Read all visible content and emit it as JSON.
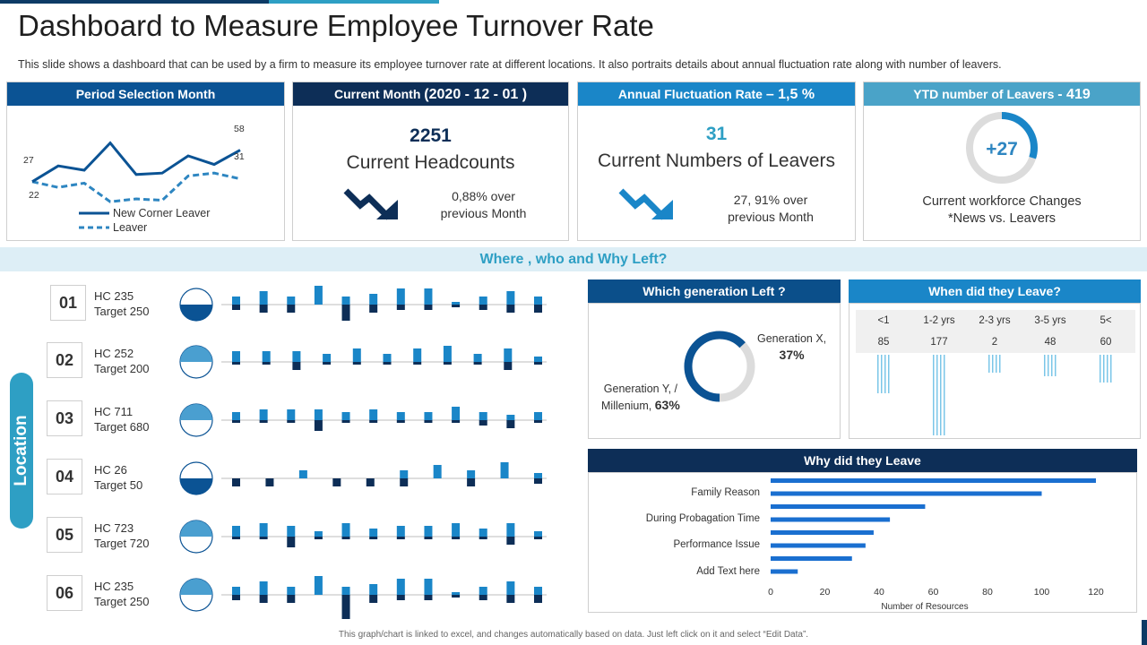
{
  "page": {
    "title": "Dashboard to Measure Employee Turnover Rate",
    "subtitle": "This slide shows a dashboard that can be used by a firm to measure its employee turnover rate at different locations. It also portraits details about annual fluctuation rate along with number of leavers.",
    "footer": "This graph/chart is linked to excel, and changes automatically based on data. Just left click on it and select “Edit Data”."
  },
  "colors": {
    "navy": "#0d3b66",
    "dark_blue": "#0b5394",
    "mid_blue": "#1f78b4",
    "accent": "#2e9fc4",
    "bright": "#1a8fd6",
    "light_band": "#ddeef6",
    "grey_ring": "#dcdcdc"
  },
  "cards": {
    "period": {
      "head": "Period Selection Month",
      "label_27": "27",
      "label_22": "22",
      "label_58": "58",
      "label_31": "31",
      "legend_solid": "New Corner  Leaver",
      "legend_dashed": "Leaver",
      "solid_series": [
        27,
        38,
        35,
        54,
        32,
        33,
        45,
        39,
        49
      ],
      "dashed_series": [
        27,
        23,
        26,
        13,
        15,
        14,
        31,
        33,
        29
      ]
    },
    "current_month": {
      "head_prefix": "Current Month ",
      "head_value": "(2020 - 12 - 01 )",
      "value": "2251",
      "caption": "Current Headcounts",
      "delta_line1": "0,88% over",
      "delta_line2": "previous Month",
      "icon": "trend-down-arrow-icon"
    },
    "fluctuation": {
      "head_prefix": "Annual Fluctuation Rate ",
      "head_value": "– 1,5 %",
      "value": "31",
      "caption": "Current Numbers of Leavers",
      "delta_line1": "27, 91% over",
      "delta_line2": "previous Month",
      "icon": "trend-down-arrow-icon"
    },
    "ytd": {
      "head_prefix": "YTD number of Leavers ",
      "head_value": "- 419",
      "ring_value": "+27",
      "ring_fraction": 0.3,
      "caption_line1": "Current workforce Changes",
      "caption_line2": "*News vs. Leavers"
    }
  },
  "section_title": "Where , who and Why Left?",
  "location_label": "Location",
  "locations": [
    {
      "id": "01",
      "hc": "HC 235",
      "target": "Target 250",
      "fill": 0.5,
      "bars": [
        [
          3,
          2
        ],
        [
          5,
          3
        ],
        [
          3,
          3
        ],
        [
          7,
          0
        ],
        [
          3,
          6
        ],
        [
          4,
          3
        ],
        [
          6,
          2
        ],
        [
          6,
          2
        ],
        [
          1,
          1
        ],
        [
          3,
          2
        ],
        [
          5,
          3
        ],
        [
          3,
          3
        ]
      ]
    },
    {
      "id": "02",
      "hc": "HC 252",
      "target": "Target 200",
      "fill": 0.5,
      "bars": [
        [
          4,
          1
        ],
        [
          4,
          1
        ],
        [
          4,
          3
        ],
        [
          3,
          1
        ],
        [
          5,
          1
        ],
        [
          3,
          1
        ],
        [
          5,
          1
        ],
        [
          6,
          1
        ],
        [
          3,
          1
        ],
        [
          5,
          3
        ],
        [
          2,
          1
        ]
      ]
    },
    {
      "id": "03",
      "hc": "HC 711",
      "target": "Target 680",
      "fill": 0.5,
      "bars": [
        [
          3,
          1
        ],
        [
          4,
          1
        ],
        [
          4,
          1
        ],
        [
          4,
          4
        ],
        [
          3,
          1
        ],
        [
          4,
          1
        ],
        [
          3,
          1
        ],
        [
          3,
          1
        ],
        [
          5,
          1
        ],
        [
          3,
          2
        ],
        [
          2,
          3
        ],
        [
          3,
          1
        ]
      ]
    },
    {
      "id": "04",
      "hc": "HC 26",
      "target": "Target 50",
      "fill": 0.5,
      "bars": [
        [
          0,
          3
        ],
        [
          0,
          3
        ],
        [
          3,
          0
        ],
        [
          0,
          3
        ],
        [
          0,
          3
        ],
        [
          3,
          3
        ],
        [
          5,
          0
        ],
        [
          3,
          3
        ],
        [
          6,
          0
        ],
        [
          2,
          2
        ]
      ]
    },
    {
      "id": "05",
      "hc": "HC 723",
      "target": "Target 720",
      "fill": 0.5,
      "bars": [
        [
          4,
          1
        ],
        [
          5,
          1
        ],
        [
          4,
          4
        ],
        [
          2,
          1
        ],
        [
          5,
          1
        ],
        [
          3,
          1
        ],
        [
          4,
          1
        ],
        [
          4,
          1
        ],
        [
          5,
          1
        ],
        [
          3,
          1
        ],
        [
          5,
          3
        ],
        [
          2,
          1
        ]
      ]
    },
    {
      "id": "06",
      "hc": "HC 235",
      "target": "Target 250",
      "fill": 0.5,
      "bars": [
        [
          3,
          2
        ],
        [
          5,
          3
        ],
        [
          3,
          3
        ],
        [
          7,
          0
        ],
        [
          3,
          9
        ],
        [
          4,
          3
        ],
        [
          6,
          2
        ],
        [
          6,
          2
        ],
        [
          1,
          1
        ],
        [
          3,
          2
        ],
        [
          5,
          3
        ],
        [
          3,
          3
        ]
      ]
    }
  ],
  "generation": {
    "head": "Which generation Left ?",
    "gen_x_label": "Generation X,",
    "gen_x_value": "37%",
    "gen_y_label1": "Generation Y, /",
    "gen_y_label2": "Millenium, ",
    "gen_y_value": "63%",
    "gen_y_fraction": 0.63
  },
  "when": {
    "head": "When did they Leave?",
    "columns": [
      {
        "label": "<1",
        "value": "85",
        "num": 85
      },
      {
        "label": "1-2 yrs",
        "value": "177",
        "num": 177
      },
      {
        "label": "2-3 yrs",
        "value": "2",
        "num": 2
      },
      {
        "label": "3-5 yrs",
        "value": "48",
        "num": 48
      },
      {
        "label": "5<",
        "value": "60",
        "num": 60
      }
    ]
  },
  "why": {
    "head": "Why did they Leave",
    "xlabel": "Number of Resources",
    "ticks": [
      "0",
      "20",
      "40",
      "60",
      "80",
      "100",
      "120"
    ],
    "labels": [
      "Family Reason",
      "During Probagation Time",
      "Performance Issue",
      "Add Text here"
    ]
  },
  "chart_data": {
    "type": "bar",
    "orientation": "horizontal",
    "title": "Why did they Leave",
    "xlabel": "Number of Resources",
    "xlim": [
      0,
      120
    ],
    "labeled_categories": [
      "Family Reason",
      "During Probagation Time",
      "Performance Issue",
      "Add Text here"
    ],
    "values": [
      120,
      100,
      57,
      44,
      38,
      35,
      30,
      10
    ]
  }
}
